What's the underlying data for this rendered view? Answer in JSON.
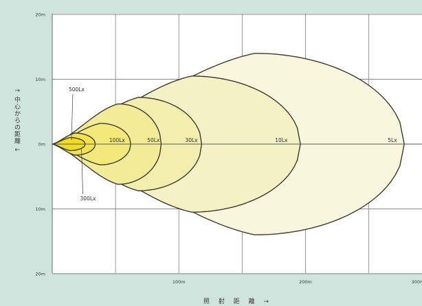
{
  "chart_data": {
    "type": "area",
    "xlabel": "照 射 距 離 →",
    "ylabel": "↑ 中心からの距離 ↓",
    "xlim": [
      0,
      300
    ],
    "ylim": [
      -20,
      20
    ],
    "x_ticks": [
      {
        "value": 100,
        "label": "100m"
      },
      {
        "value": 200,
        "label": "200m"
      },
      {
        "value": 300,
        "label": "300m"
      }
    ],
    "y_ticks": [
      {
        "value": 20,
        "label": "20m"
      },
      {
        "value": 10,
        "label": "10m"
      },
      {
        "value": 0,
        "label": "0m"
      },
      {
        "value": -10,
        "label": "10m"
      },
      {
        "value": -20,
        "label": "20m"
      }
    ],
    "grid": true,
    "series": [
      {
        "name": "5Lx",
        "reach_m": 278,
        "half_width_m": 14,
        "peak_at_m": 160,
        "fill": "#f8f6dc",
        "label_at_m": 265
      },
      {
        "name": "10Lx",
        "reach_m": 196,
        "half_width_m": 10.5,
        "peak_at_m": 110,
        "fill": "#f4f1c4",
        "label_at_m": 176
      },
      {
        "name": "30Lx",
        "reach_m": 118,
        "half_width_m": 7.2,
        "peak_at_m": 68,
        "fill": "#f3eeae",
        "label_at_m": 105
      },
      {
        "name": "50Lx",
        "reach_m": 86,
        "half_width_m": 6.2,
        "peak_at_m": 52,
        "fill": "#f2ec98",
        "label_at_m": 75
      },
      {
        "name": "100Lx",
        "reach_m": 62,
        "half_width_m": 3.2,
        "peak_at_m": 38,
        "fill": "#f3e87a",
        "label_at_m": 45
      },
      {
        "name": "300Lx",
        "reach_m": 34,
        "half_width_m": 1.7,
        "peak_at_m": 18,
        "fill": "#f1e34e",
        "label_at_m": 22
      },
      {
        "name": "500Lx",
        "reach_m": 26,
        "half_width_m": 1.0,
        "peak_at_m": 14,
        "fill": "#f0dd22",
        "label_at_m": 13
      }
    ]
  }
}
